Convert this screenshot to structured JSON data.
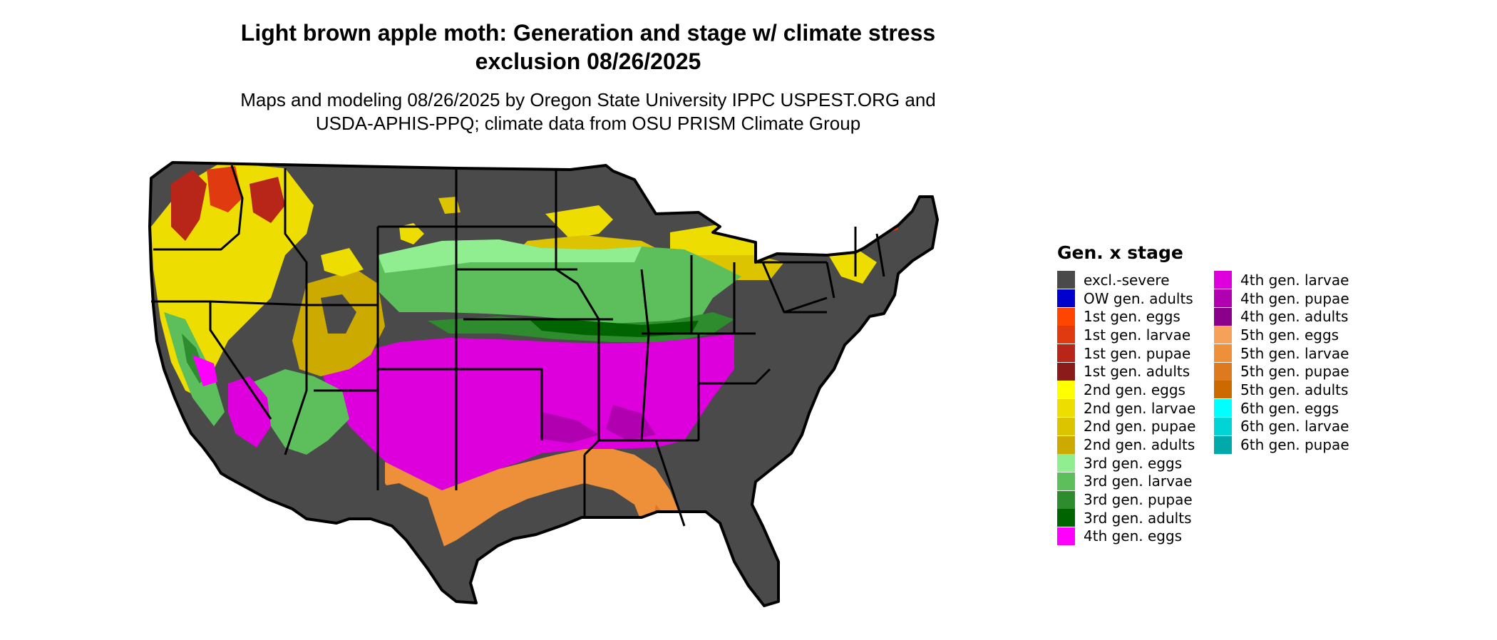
{
  "title": {
    "line1": "Light brown apple moth: Generation and stage w/ climate stress",
    "line2": "exclusion 08/26/2025"
  },
  "subtitle": {
    "line1": "Maps and modeling 08/26/2025 by Oregon State University IPPC USPEST.ORG and",
    "line2": "USDA-APHIS-PPQ; climate data from OSU PRISM Climate Group"
  },
  "legend": {
    "title": "Gen. x stage",
    "col1": [
      {
        "label": "excl.-severe",
        "color": "#4a4a4a"
      },
      {
        "label": "OW gen. adults",
        "color": "#0000cc"
      },
      {
        "label": "1st gen. eggs",
        "color": "#ff4500"
      },
      {
        "label": "1st gen. larvae",
        "color": "#e03a10"
      },
      {
        "label": "1st gen. pupae",
        "color": "#b8261a"
      },
      {
        "label": "1st gen. adults",
        "color": "#8b1a1a"
      },
      {
        "label": "2nd gen. eggs",
        "color": "#ffff00"
      },
      {
        "label": "2nd gen. larvae",
        "color": "#eedd00"
      },
      {
        "label": "2nd gen. pupae",
        "color": "#ddc400"
      },
      {
        "label": "2nd gen. adults",
        "color": "#ccaa00"
      },
      {
        "label": "3rd gen. eggs",
        "color": "#90ee90"
      },
      {
        "label": "3rd gen. larvae",
        "color": "#5cbf5c"
      },
      {
        "label": "3rd gen. pupae",
        "color": "#2e8b2e"
      },
      {
        "label": "3rd gen. adults",
        "color": "#006400"
      },
      {
        "label": "4th gen. eggs",
        "color": "#ff00ff"
      }
    ],
    "col2": [
      {
        "label": "4th gen. larvae",
        "color": "#dd00dd"
      },
      {
        "label": "4th gen. pupae",
        "color": "#b000b0"
      },
      {
        "label": "4th gen. adults",
        "color": "#8b008b"
      },
      {
        "label": "5th gen. eggs",
        "color": "#f5a15a"
      },
      {
        "label": "5th gen. larvae",
        "color": "#ee8f3a"
      },
      {
        "label": "5th gen. pupae",
        "color": "#dd7a1f"
      },
      {
        "label": "5th gen. adults",
        "color": "#cc6a00"
      },
      {
        "label": "6th gen. eggs",
        "color": "#00ffff"
      },
      {
        "label": "6th gen. larvae",
        "color": "#00d4d4"
      },
      {
        "label": "6th gen. pupae",
        "color": "#00aaaa"
      }
    ]
  },
  "map": {
    "region": "Contiguous United States",
    "border_color": "#000000"
  }
}
